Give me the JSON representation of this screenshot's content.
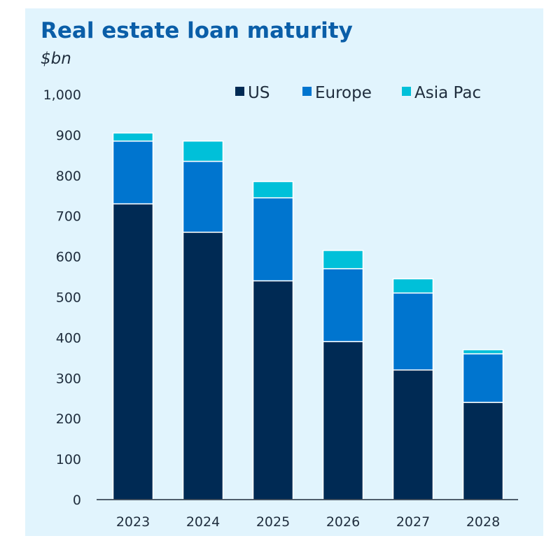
{
  "chart_data": {
    "type": "bar",
    "stacked": true,
    "title": "Real estate loan maturity",
    "unit_label": "$bn",
    "categories": [
      "2023",
      "2024",
      "2025",
      "2026",
      "2027",
      "2028"
    ],
    "series": [
      {
        "name": "US",
        "color": "#002a54",
        "values": [
          730,
          660,
          540,
          390,
          320,
          240
        ]
      },
      {
        "name": "Europe",
        "color": "#0075cf",
        "values": [
          155,
          175,
          205,
          180,
          190,
          120
        ]
      },
      {
        "name": "Asia Pac",
        "color": "#00c0d9",
        "values": [
          20,
          50,
          40,
          45,
          35,
          10
        ]
      }
    ],
    "ylim": [
      0,
      1000
    ],
    "yticks": [
      "0",
      "100",
      "200",
      "300",
      "400",
      "500",
      "600",
      "700",
      "800",
      "900",
      "1,000"
    ],
    "grid": false,
    "legend_position": "top-right"
  }
}
